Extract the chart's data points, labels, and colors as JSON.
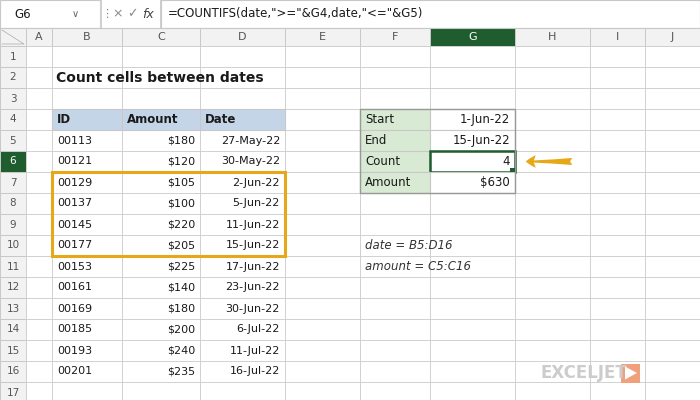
{
  "formula_bar_cell": "G6",
  "formula_bar_formula": "=COUNTIFS(date,\">=\"&G4,date,\"<=\"&G5)",
  "title": "Count cells between dates",
  "main_table": {
    "headers": [
      "ID",
      "Amount",
      "Date"
    ],
    "rows": [
      [
        5,
        "00113",
        "$180",
        "27-May-22"
      ],
      [
        6,
        "00121",
        "$120",
        "30-May-22"
      ],
      [
        7,
        "00129",
        "$105",
        "2-Jun-22"
      ],
      [
        8,
        "00137",
        "$100",
        "5-Jun-22"
      ],
      [
        9,
        "00145",
        "$220",
        "11-Jun-22"
      ],
      [
        10,
        "00177",
        "$205",
        "15-Jun-22"
      ],
      [
        11,
        "00153",
        "$225",
        "17-Jun-22"
      ],
      [
        12,
        "00161",
        "$140",
        "23-Jun-22"
      ],
      [
        13,
        "00169",
        "$180",
        "30-Jun-22"
      ],
      [
        14,
        "00185",
        "$200",
        "6-Jul-22"
      ],
      [
        15,
        "00193",
        "$240",
        "11-Jul-22"
      ],
      [
        16,
        "00201",
        "$235",
        "16-Jul-22"
      ]
    ],
    "highlighted_rows": [
      7,
      8,
      9,
      10
    ],
    "header_bg": "#c5d5e8",
    "highlight_border_color": "#e6a817"
  },
  "side_table": {
    "rows": [
      [
        4,
        "Start",
        "1-Jun-22"
      ],
      [
        5,
        "End",
        "15-Jun-22"
      ],
      [
        6,
        "Count",
        "4"
      ],
      [
        7,
        "Amount",
        "$630"
      ]
    ],
    "header_bg": "#d8ead3",
    "count_row": 6
  },
  "annotations": [
    {
      "row": 10,
      "text": "date = B5:D16"
    },
    {
      "row": 11,
      "text": "amount = C5:C16"
    }
  ],
  "active_col": "G",
  "active_row": 6,
  "bg_color": "#ffffff",
  "grid_color": "#c8c8c8",
  "header_bar_bg": "#f2f2f2",
  "active_header_bg": "#1f5c2e",
  "active_header_fg": "#ffffff",
  "arrow_color": "#e6a817",
  "cell_border_color": "#1f5c2e",
  "exceljet_color": "#cccccc",
  "exceljet_orange": "#f0a07a"
}
